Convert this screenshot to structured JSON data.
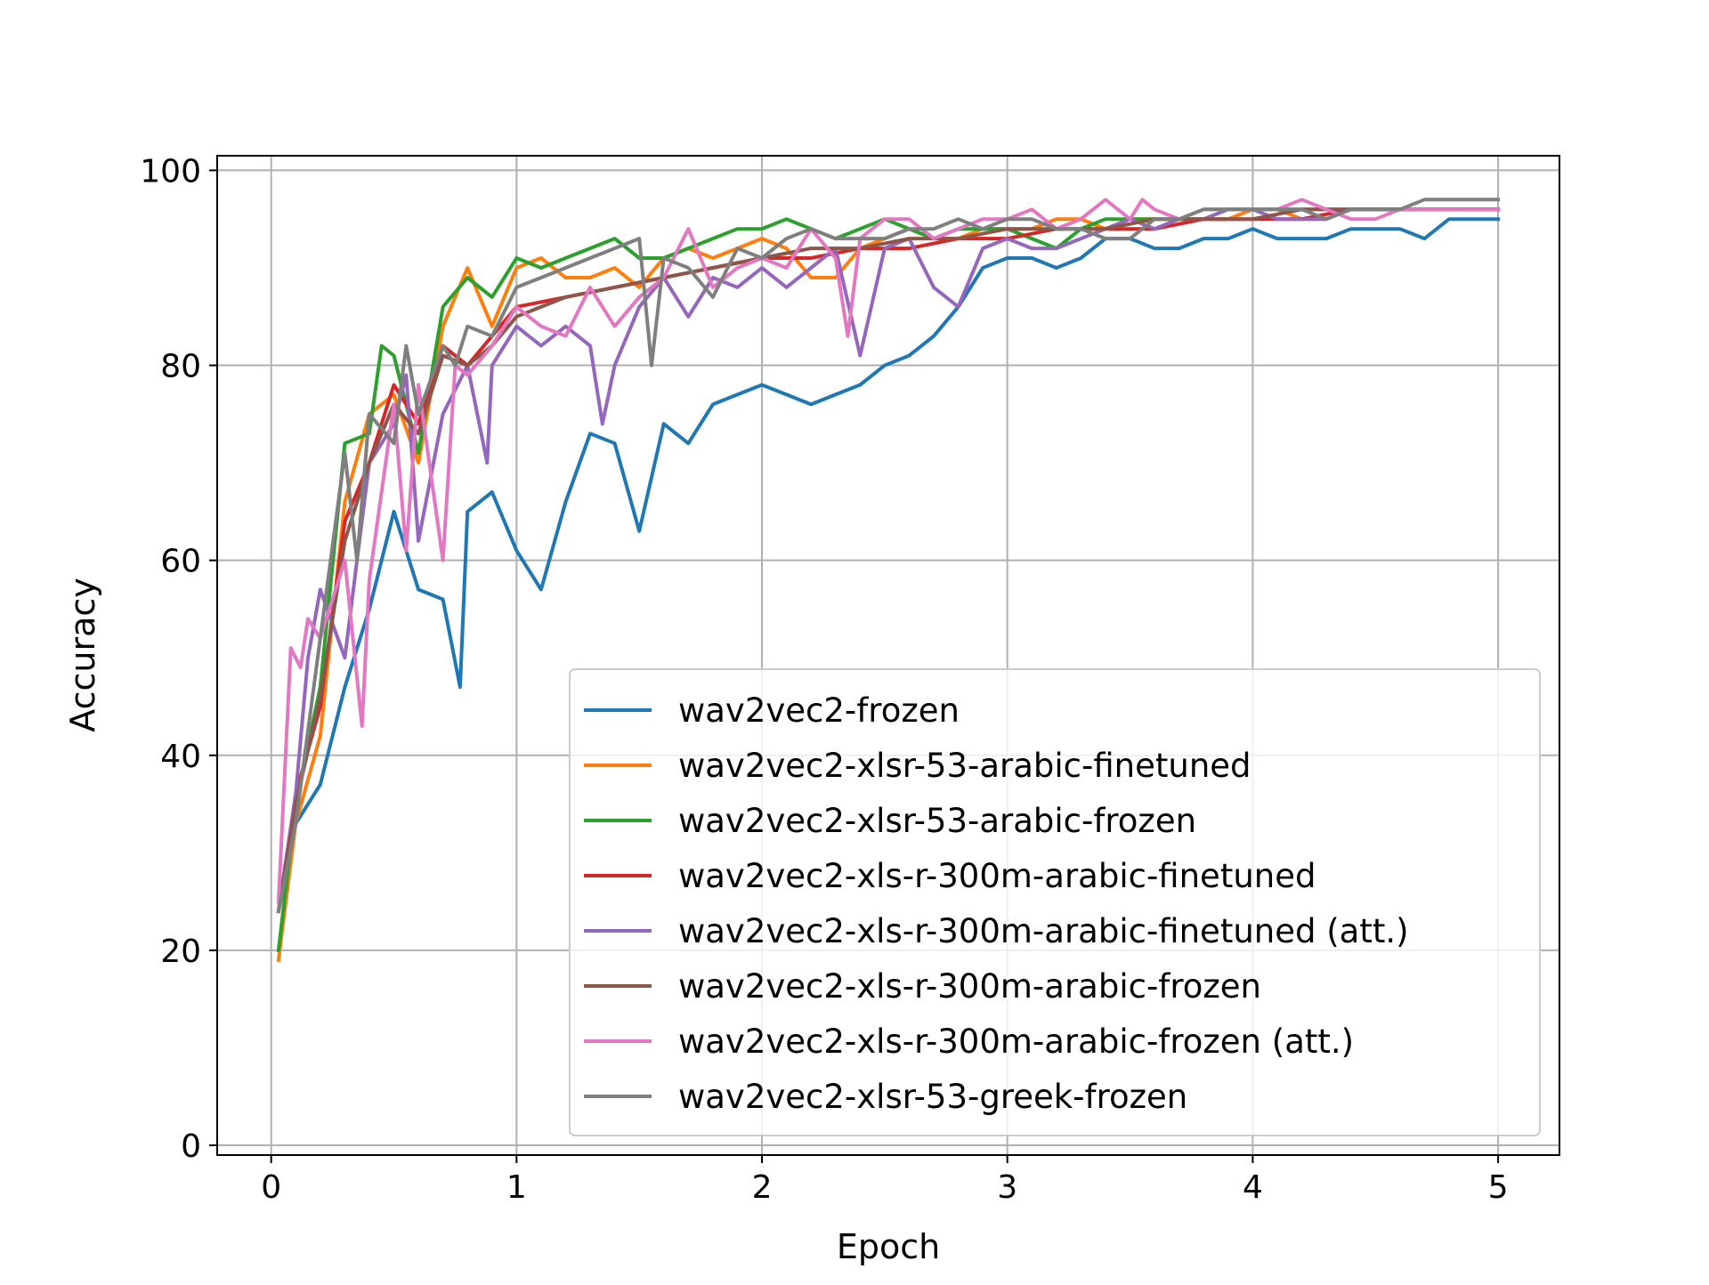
{
  "chart_data": {
    "type": "line",
    "title": "",
    "xlabel": "Epoch",
    "ylabel": "Accuracy",
    "xlim": [
      -0.22,
      5.25
    ],
    "ylim": [
      -1.0,
      101.5
    ],
    "xticks": [
      0,
      1,
      2,
      3,
      4,
      5
    ],
    "yticks": [
      0,
      20,
      40,
      60,
      80,
      100
    ],
    "xtick_labels": [
      "0",
      "1",
      "2",
      "3",
      "4",
      "5"
    ],
    "ytick_labels": [
      "0",
      "20",
      "40",
      "60",
      "80",
      "100"
    ],
    "grid": true,
    "legend_position": "lower-right",
    "series": [
      {
        "name": "wav2vec2-frozen",
        "color": "#1f77b4",
        "x": [
          0.03,
          0.1,
          0.2,
          0.3,
          0.4,
          0.5,
          0.6,
          0.7,
          0.77,
          0.8,
          0.9,
          1.0,
          1.1,
          1.2,
          1.3,
          1.4,
          1.5,
          1.6,
          1.7,
          1.8,
          1.9,
          2.0,
          2.1,
          2.2,
          2.3,
          2.4,
          2.5,
          2.6,
          2.7,
          2.8,
          2.9,
          3.0,
          3.1,
          3.2,
          3.3,
          3.4,
          3.5,
          3.6,
          3.7,
          3.8,
          3.9,
          4.0,
          4.1,
          4.2,
          4.3,
          4.4,
          4.5,
          4.6,
          4.7,
          4.8,
          4.9,
          5.0
        ],
        "y": [
          24,
          33,
          37,
          47,
          55,
          65,
          57,
          56,
          47,
          65,
          67,
          61,
          57,
          66,
          73,
          72,
          63,
          74,
          72,
          76,
          77,
          78,
          77,
          76,
          77,
          78,
          80,
          81,
          83,
          86,
          90,
          91,
          91,
          90,
          91,
          93,
          93,
          92,
          92,
          93,
          93,
          94,
          93,
          93,
          93,
          94,
          94,
          94,
          93,
          95,
          95,
          95
        ]
      },
      {
        "name": "wav2vec2-xlsr-53-arabic-finetuned",
        "color": "#ff7f0e",
        "x": [
          0.03,
          0.1,
          0.2,
          0.3,
          0.4,
          0.5,
          0.6,
          0.7,
          0.8,
          0.9,
          1.0,
          1.1,
          1.2,
          1.3,
          1.4,
          1.5,
          1.6,
          1.7,
          1.8,
          1.9,
          2.0,
          2.1,
          2.2,
          2.3,
          2.4,
          2.5,
          2.6,
          2.7,
          2.8,
          2.9,
          3.0,
          3.1,
          3.2,
          3.3,
          3.4,
          3.5,
          3.6,
          3.7,
          3.8,
          3.9,
          4.0,
          4.1,
          4.2,
          4.3,
          4.4,
          4.5,
          4.6,
          4.7,
          4.8,
          4.9,
          5.0
        ],
        "y": [
          19,
          33,
          42,
          66,
          75,
          77,
          70,
          84,
          90,
          84,
          90,
          91,
          89,
          89,
          90,
          88,
          91,
          92,
          91,
          92,
          93,
          92,
          89,
          89,
          92,
          93,
          94,
          93,
          93,
          94,
          94,
          94,
          95,
          95,
          94,
          95,
          95,
          95,
          95,
          95,
          96,
          96,
          95,
          95,
          96,
          96,
          96,
          96,
          96,
          96,
          96
        ]
      },
      {
        "name": "wav2vec2-xlsr-53-arabic-frozen",
        "color": "#2ca02c",
        "x": [
          0.03,
          0.1,
          0.2,
          0.3,
          0.4,
          0.45,
          0.5,
          0.6,
          0.7,
          0.8,
          0.9,
          1.0,
          1.1,
          1.2,
          1.3,
          1.4,
          1.5,
          1.6,
          1.7,
          1.8,
          1.9,
          2.0,
          2.1,
          2.2,
          2.3,
          2.4,
          2.5,
          2.6,
          2.7,
          2.8,
          2.9,
          3.0,
          3.1,
          3.2,
          3.3,
          3.4,
          3.5,
          3.6,
          3.7,
          3.8,
          3.9,
          4.0,
          4.1,
          4.2,
          4.3,
          4.4,
          4.5,
          4.6,
          4.7,
          4.8,
          4.9,
          5.0
        ],
        "y": [
          20,
          35,
          47,
          72,
          73,
          82,
          81,
          71,
          86,
          89,
          87,
          91,
          90,
          91,
          92,
          93,
          91,
          91,
          92,
          93,
          94,
          94,
          95,
          94,
          93,
          94,
          95,
          94,
          93,
          94,
          94,
          94,
          93,
          92,
          94,
          95,
          95,
          95,
          95,
          95,
          96,
          96,
          96,
          96,
          96,
          96,
          96,
          96,
          96,
          96,
          96,
          96
        ]
      },
      {
        "name": "wav2vec2-xls-r-300m-arabic-finetuned",
        "color": "#d62728",
        "x": [
          0.03,
          0.1,
          0.2,
          0.3,
          0.4,
          0.5,
          0.6,
          0.7,
          0.8,
          0.9,
          1.0,
          1.2,
          1.4,
          1.6,
          1.8,
          2.0,
          2.2,
          2.4,
          2.6,
          2.8,
          3.0,
          3.2,
          3.4,
          3.6,
          3.8,
          4.0,
          4.2,
          4.4,
          4.6,
          4.8,
          5.0
        ],
        "y": [
          24,
          36,
          45,
          64,
          70,
          78,
          74,
          82,
          80,
          83,
          86,
          87,
          88,
          89,
          90,
          91,
          91,
          92,
          92,
          93,
          93,
          94,
          94,
          94,
          95,
          95,
          95,
          96,
          96,
          96,
          96
        ]
      },
      {
        "name": "wav2vec2-xls-r-300m-arabic-finetuned (att.)",
        "color": "#9467bd",
        "x": [
          0.03,
          0.1,
          0.15,
          0.2,
          0.3,
          0.35,
          0.4,
          0.5,
          0.55,
          0.6,
          0.7,
          0.8,
          0.88,
          0.9,
          1.0,
          1.1,
          1.2,
          1.3,
          1.35,
          1.4,
          1.5,
          1.6,
          1.7,
          1.8,
          1.9,
          2.0,
          2.1,
          2.2,
          2.3,
          2.4,
          2.5,
          2.6,
          2.7,
          2.8,
          2.9,
          3.0,
          3.1,
          3.2,
          3.3,
          3.4,
          3.5,
          3.6,
          3.7,
          3.8,
          3.9,
          4.0,
          4.1,
          4.2,
          4.3,
          4.4,
          4.5,
          4.6,
          4.7,
          4.8,
          4.9,
          5.0
        ],
        "y": [
          24,
          36,
          50,
          57,
          50,
          60,
          70,
          74,
          79,
          62,
          75,
          80,
          70,
          80,
          84,
          82,
          84,
          82,
          74,
          80,
          86,
          89,
          85,
          89,
          88,
          90,
          88,
          90,
          92,
          81,
          92,
          93,
          88,
          86,
          92,
          93,
          92,
          92,
          93,
          94,
          95,
          94,
          95,
          95,
          96,
          96,
          95,
          95,
          95,
          96,
          96,
          96,
          96,
          96,
          96,
          96
        ]
      },
      {
        "name": "wav2vec2-xls-r-300m-arabic-frozen",
        "color": "#8c564b",
        "x": [
          0.03,
          0.1,
          0.2,
          0.3,
          0.4,
          0.5,
          0.6,
          0.7,
          0.8,
          0.9,
          1.0,
          1.2,
          1.4,
          1.6,
          1.8,
          2.0,
          2.2,
          2.4,
          2.6,
          2.8,
          3.0,
          3.2,
          3.4,
          3.6,
          3.8,
          4.0,
          4.2,
          4.4,
          4.6,
          4.8,
          5.0
        ],
        "y": [
          24,
          35,
          46,
          62,
          70,
          76,
          73,
          81,
          80,
          82,
          85,
          87,
          88,
          89,
          90,
          91,
          92,
          92,
          93,
          93,
          94,
          94,
          94,
          95,
          95,
          95,
          96,
          96,
          96,
          96,
          96
        ]
      },
      {
        "name": "wav2vec2-xls-r-300m-arabic-frozen (att.)",
        "color": "#e377c2",
        "x": [
          0.03,
          0.08,
          0.12,
          0.15,
          0.2,
          0.3,
          0.37,
          0.4,
          0.5,
          0.55,
          0.6,
          0.7,
          0.75,
          0.8,
          0.9,
          1.0,
          1.1,
          1.2,
          1.3,
          1.4,
          1.5,
          1.6,
          1.7,
          1.8,
          1.9,
          2.0,
          2.1,
          2.2,
          2.3,
          2.35,
          2.4,
          2.5,
          2.6,
          2.7,
          2.8,
          2.9,
          3.0,
          3.1,
          3.2,
          3.3,
          3.4,
          3.5,
          3.55,
          3.6,
          3.7,
          3.8,
          3.9,
          4.0,
          4.1,
          4.2,
          4.3,
          4.4,
          4.5,
          4.6,
          4.7,
          4.8,
          4.9,
          5.0
        ],
        "y": [
          25,
          51,
          49,
          54,
          52,
          60,
          43,
          58,
          76,
          61,
          78,
          60,
          80,
          79,
          82,
          86,
          84,
          83,
          88,
          84,
          87,
          89,
          94,
          88,
          90,
          91,
          90,
          94,
          91,
          83,
          93,
          95,
          95,
          93,
          94,
          95,
          95,
          96,
          94,
          95,
          97,
          95,
          97,
          96,
          95,
          96,
          96,
          96,
          96,
          97,
          96,
          95,
          95,
          96,
          96,
          96,
          96,
          96
        ]
      },
      {
        "name": "wav2vec2-xlsr-53-greek-frozen",
        "color": "#7f7f7f",
        "x": [
          0.03,
          0.1,
          0.2,
          0.3,
          0.35,
          0.4,
          0.5,
          0.55,
          0.6,
          0.7,
          0.75,
          0.8,
          0.9,
          1.0,
          1.1,
          1.2,
          1.3,
          1.4,
          1.5,
          1.55,
          1.6,
          1.7,
          1.8,
          1.9,
          2.0,
          2.1,
          2.2,
          2.3,
          2.4,
          2.5,
          2.6,
          2.7,
          2.8,
          2.9,
          3.0,
          3.1,
          3.2,
          3.3,
          3.4,
          3.5,
          3.6,
          3.7,
          3.8,
          3.9,
          4.0,
          4.1,
          4.2,
          4.3,
          4.4,
          4.5,
          4.6,
          4.7,
          4.8,
          4.9,
          5.0
        ],
        "y": [
          24,
          33,
          52,
          71,
          60,
          75,
          72,
          82,
          75,
          82,
          80,
          84,
          83,
          88,
          89,
          90,
          91,
          92,
          93,
          80,
          91,
          90,
          87,
          92,
          91,
          93,
          94,
          93,
          93,
          93,
          94,
          94,
          95,
          94,
          95,
          95,
          94,
          94,
          93,
          93,
          95,
          95,
          96,
          96,
          96,
          96,
          96,
          95,
          96,
          96,
          96,
          97,
          97,
          97,
          97
        ]
      }
    ]
  }
}
